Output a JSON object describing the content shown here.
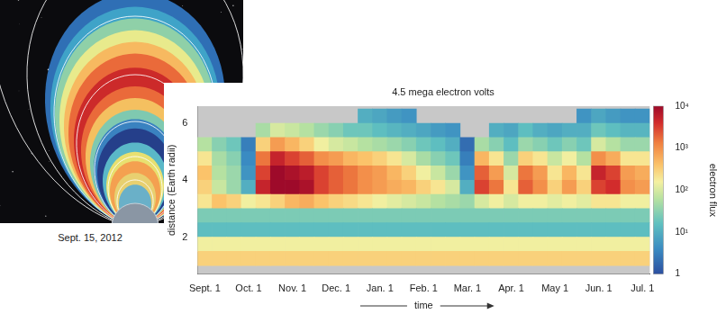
{
  "chart_data": {
    "type": "heatmap",
    "title": "4.5 mega electron volts",
    "x_label": "time",
    "y_label": "distance (Earth radii)",
    "categories": [
      "Sept. 1",
      null,
      null,
      "Oct. 1",
      null,
      null,
      "Nov. 1",
      null,
      null,
      "Dec. 1",
      null,
      null,
      "Jan. 1",
      null,
      null,
      "Feb. 1",
      null,
      null,
      "Mar. 1",
      null,
      null,
      "Apr. 1",
      null,
      null,
      "May 1",
      null,
      null,
      "Jun. 1",
      null,
      null,
      "Jul. 1"
    ],
    "y_bins": [
      1,
      1.5,
      2,
      2.5,
      3,
      3.5,
      4,
      4.5,
      5,
      5.5,
      6,
      6.5
    ],
    "cells": [
      [
        300,
        300,
        300,
        300,
        300,
        300,
        300,
        300,
        300,
        300,
        300,
        300,
        300,
        300,
        300,
        300,
        300,
        300,
        300,
        300,
        300,
        300,
        300,
        300,
        300,
        300,
        300,
        300,
        300,
        300,
        300
      ],
      [
        150,
        150,
        150,
        150,
        150,
        150,
        150,
        150,
        150,
        150,
        150,
        150,
        150,
        150,
        150,
        150,
        150,
        150,
        150,
        150,
        150,
        150,
        150,
        150,
        150,
        150,
        150,
        150,
        150,
        150,
        150
      ],
      [
        15,
        15,
        15,
        15,
        15,
        15,
        15,
        15,
        15,
        15,
        15,
        15,
        15,
        15,
        15,
        15,
        15,
        15,
        15,
        15,
        15,
        15,
        15,
        15,
        15,
        15,
        15,
        15,
        15,
        15,
        15
      ],
      [
        25,
        25,
        25,
        25,
        25,
        25,
        25,
        25,
        25,
        25,
        25,
        25,
        25,
        25,
        25,
        25,
        25,
        25,
        25,
        25,
        25,
        25,
        25,
        25,
        25,
        25,
        25,
        25,
        25,
        25,
        25
      ],
      [
        200,
        400,
        300,
        150,
        200,
        300,
        500,
        600,
        400,
        300,
        250,
        200,
        150,
        120,
        100,
        80,
        60,
        50,
        40,
        100,
        150,
        100,
        150,
        150,
        120,
        150,
        120,
        200,
        200,
        150,
        150
      ],
      [
        300,
        80,
        40,
        10,
        5000,
        10000,
        10000,
        8000,
        3000,
        2000,
        1500,
        1000,
        800,
        600,
        500,
        300,
        200,
        100,
        10,
        3000,
        1500,
        200,
        2000,
        1000,
        300,
        800,
        300,
        3000,
        4000,
        1000,
        800
      ],
      [
        400,
        60,
        40,
        5,
        3000,
        10000,
        8000,
        6000,
        3000,
        2000,
        1500,
        1000,
        800,
        500,
        300,
        150,
        80,
        40,
        5,
        2000,
        800,
        100,
        1500,
        800,
        200,
        500,
        200,
        5000,
        3000,
        800,
        600
      ],
      [
        200,
        50,
        30,
        4,
        1500,
        5000,
        3000,
        2000,
        1000,
        800,
        500,
        400,
        300,
        200,
        100,
        50,
        30,
        20,
        3,
        500,
        200,
        40,
        300,
        200,
        80,
        150,
        60,
        1000,
        600,
        200,
        200
      ],
      [
        60,
        30,
        20,
        3,
        300,
        800,
        500,
        300,
        150,
        100,
        80,
        60,
        50,
        40,
        30,
        20,
        15,
        10,
        2,
        50,
        30,
        15,
        40,
        30,
        20,
        30,
        20,
        100,
        60,
        40,
        40
      ],
      [
        null,
        null,
        null,
        null,
        50,
        100,
        80,
        60,
        40,
        30,
        20,
        20,
        15,
        12,
        10,
        8,
        6,
        5,
        null,
        null,
        10,
        8,
        15,
        10,
        8,
        10,
        10,
        20,
        15,
        12,
        12
      ],
      [
        null,
        null,
        null,
        null,
        null,
        null,
        null,
        null,
        null,
        null,
        null,
        10,
        8,
        6,
        5,
        null,
        null,
        null,
        null,
        null,
        null,
        null,
        null,
        null,
        null,
        null,
        5,
        8,
        6,
        5,
        5
      ]
    ],
    "ylim": [
      0.7,
      6.6
    ],
    "yticks": [
      2,
      4,
      6
    ],
    "grid": false,
    "colorbar": {
      "label": "electron flux",
      "range": [
        1,
        10000
      ],
      "ticks": [
        1,
        {
          "value": 10,
          "label": "10¹"
        },
        {
          "value": 100,
          "label": "10²"
        },
        {
          "value": 1000,
          "label": "10³"
        },
        {
          "value": 10000,
          "label": "10⁴"
        }
      ]
    }
  },
  "inset": {
    "caption": "Sept. 15, 2012"
  }
}
